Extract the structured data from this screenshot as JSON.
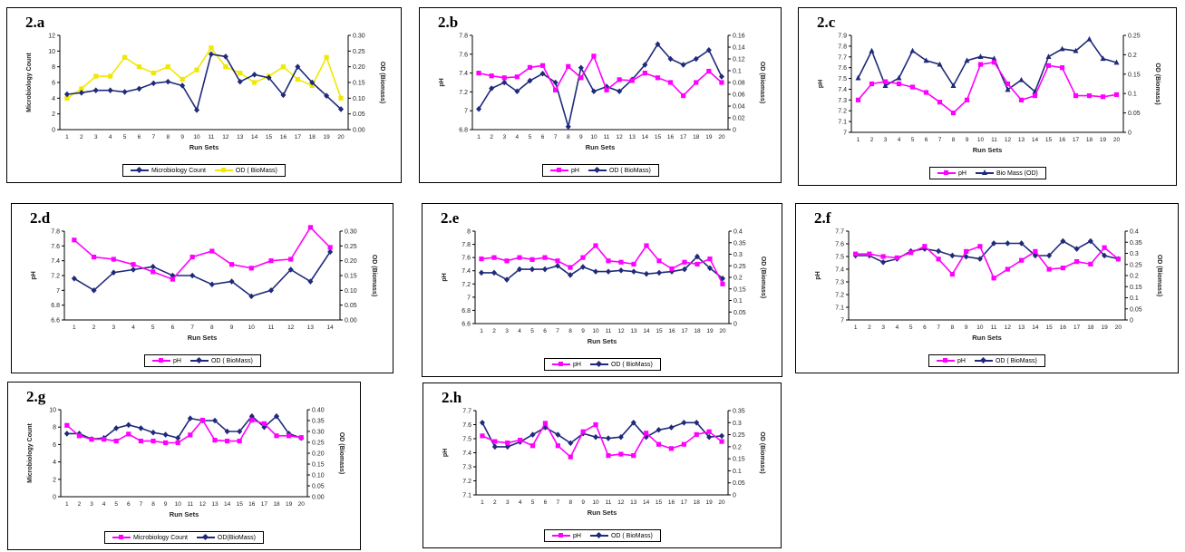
{
  "chart_data": [
    {
      "id": "2.a",
      "type": "line",
      "xlabel": "Run Sets",
      "ylabel": "Microbiology Count",
      "y2label": "OD (Biomass)",
      "x": [
        1,
        2,
        3,
        4,
        5,
        6,
        7,
        8,
        9,
        10,
        11,
        12,
        13,
        14,
        15,
        16,
        17,
        18,
        19,
        20
      ],
      "x_tick_labels": [
        "1",
        "2",
        "3",
        "4",
        "5",
        "6",
        "7",
        "8",
        "9",
        "10",
        "11",
        "12",
        "13",
        "14",
        "15",
        "16",
        "17",
        "18",
        "19",
        "20"
      ],
      "ylim": [
        0,
        12
      ],
      "yticks": [
        "0",
        "2",
        "4",
        "6",
        "8",
        "10",
        "12"
      ],
      "y2lim": [
        0,
        0.3
      ],
      "y2ticks": [
        "0.00",
        "0.05",
        "0.10",
        "0.15",
        "0.20",
        "0.25",
        "0.30"
      ],
      "series": [
        {
          "name": "Microbiology Count",
          "axis": "left",
          "color": "#1f2a7a",
          "marker": "diamond",
          "values": [
            4.5,
            4.7,
            5.0,
            5.0,
            4.8,
            5.2,
            5.9,
            6.1,
            5.6,
            2.5,
            9.6,
            9.3,
            6.1,
            7.0,
            6.6,
            4.4,
            8.0,
            6.0,
            4.3,
            2.6
          ]
        },
        {
          "name": "OD ( BioMass)",
          "axis": "right",
          "color": "#f0e800",
          "marker": "square",
          "values": [
            0.1,
            0.13,
            0.17,
            0.17,
            0.23,
            0.2,
            0.18,
            0.2,
            0.16,
            0.19,
            0.26,
            0.2,
            0.18,
            0.15,
            0.17,
            0.2,
            0.16,
            0.14,
            0.23,
            0.1
          ]
        }
      ]
    },
    {
      "id": "2.b",
      "type": "line",
      "xlabel": "Run Sets",
      "ylabel": "pH",
      "y2label": "OD (Biomass)",
      "x": [
        1,
        2,
        3,
        4,
        5,
        6,
        7,
        8,
        9,
        10,
        11,
        12,
        13,
        14,
        15,
        16,
        17,
        18,
        19,
        20
      ],
      "x_tick_labels": [
        "1",
        "2",
        "3",
        "4",
        "5",
        "6",
        "7",
        "8",
        "9",
        "10",
        "11",
        "12",
        "13",
        "14",
        "15",
        "16",
        "17",
        "18",
        "19",
        "20"
      ],
      "ylim": [
        6.8,
        7.8
      ],
      "yticks": [
        "6.8",
        "7",
        "7.2",
        "7.4",
        "7.6",
        "7.8"
      ],
      "y2lim": [
        0,
        0.16
      ],
      "y2ticks": [
        "0",
        "0.02",
        "0.04",
        "0.06",
        "0.08",
        "0.1",
        "0.12",
        "0.14",
        "0.16"
      ],
      "series": [
        {
          "name": "pH",
          "axis": "left",
          "color": "#ff00ff",
          "marker": "square",
          "values": [
            7.4,
            7.37,
            7.35,
            7.36,
            7.46,
            7.48,
            7.22,
            7.47,
            7.35,
            7.58,
            7.22,
            7.33,
            7.32,
            7.4,
            7.35,
            7.3,
            7.16,
            7.3,
            7.42,
            7.3
          ]
        },
        {
          "name": "OD ( BioMass)",
          "axis": "right",
          "color": "#1f2a7a",
          "marker": "diamond",
          "values": [
            0.035,
            0.07,
            0.08,
            0.065,
            0.083,
            0.095,
            0.08,
            0.005,
            0.105,
            0.065,
            0.073,
            0.065,
            0.085,
            0.11,
            0.145,
            0.12,
            0.11,
            0.12,
            0.135,
            0.09
          ]
        }
      ]
    },
    {
      "id": "2.c",
      "type": "line",
      "xlabel": "Run Sets",
      "ylabel": "pH",
      "y2label": "OD (Biomass)",
      "x": [
        1,
        2,
        3,
        4,
        5,
        6,
        7,
        8,
        9,
        10,
        11,
        12,
        13,
        14,
        15,
        16,
        17,
        18,
        19,
        20
      ],
      "x_tick_labels": [
        "1",
        "2",
        "3",
        "4",
        "5",
        "6",
        "7",
        "8",
        "9",
        "10",
        "11",
        "12",
        "13",
        "14",
        "15",
        "16",
        "17",
        "18",
        "19",
        "20"
      ],
      "ylim": [
        7,
        7.9
      ],
      "yticks": [
        "7",
        "7.1",
        "7.2",
        "7.3",
        "7.4",
        "7.5",
        "7.6",
        "7.7",
        "7.8",
        "7.9"
      ],
      "y2lim": [
        0,
        0.25
      ],
      "y2ticks": [
        "0",
        "0.05",
        "0.1",
        "0.15",
        "0.2",
        "0.25"
      ],
      "series": [
        {
          "name": "pH",
          "axis": "left",
          "color": "#ff00ff",
          "marker": "square",
          "values": [
            7.3,
            7.45,
            7.47,
            7.45,
            7.42,
            7.37,
            7.28,
            7.18,
            7.3,
            7.63,
            7.65,
            7.45,
            7.3,
            7.34,
            7.62,
            7.6,
            7.34,
            7.34,
            7.33,
            7.35
          ]
        },
        {
          "name": "Bio Mass (OD)",
          "axis": "right",
          "color": "#1f2a7a",
          "marker": "triangle",
          "values": [
            0.14,
            0.21,
            0.12,
            0.14,
            0.21,
            0.185,
            0.175,
            0.12,
            0.185,
            0.195,
            0.19,
            0.11,
            0.135,
            0.105,
            0.195,
            0.215,
            0.21,
            0.24,
            0.19,
            0.18
          ]
        }
      ]
    },
    {
      "id": "2.d",
      "type": "line",
      "xlabel": "Run Sets",
      "ylabel": "pH",
      "y2label": "OD (Biomass)",
      "x": [
        1,
        2,
        3,
        4,
        5,
        6,
        7,
        8,
        9,
        10,
        11,
        12,
        13,
        14
      ],
      "x_tick_labels": [
        "1",
        "2",
        "3",
        "4",
        "5",
        "6",
        "7",
        "8",
        "9",
        "10",
        "11",
        "12",
        "13",
        "14"
      ],
      "ylim": [
        6.6,
        7.8
      ],
      "yticks": [
        "6.6",
        "6.8",
        "7",
        "7.2",
        "7.4",
        "7.6",
        "7.8"
      ],
      "y2lim": [
        0,
        0.3
      ],
      "y2ticks": [
        "0.00",
        "0.05",
        "0.10",
        "0.15",
        "0.20",
        "0.25",
        "0.30"
      ],
      "series": [
        {
          "name": "pH",
          "axis": "left",
          "color": "#ff00ff",
          "marker": "square",
          "values": [
            7.68,
            7.45,
            7.42,
            7.35,
            7.25,
            7.15,
            7.45,
            7.53,
            7.35,
            7.3,
            7.4,
            7.42,
            7.85,
            7.58
          ]
        },
        {
          "name": "OD ( BioMass)",
          "axis": "right",
          "color": "#1f2a7a",
          "marker": "diamond",
          "values": [
            0.14,
            0.1,
            0.16,
            0.17,
            0.18,
            0.15,
            0.15,
            0.12,
            0.13,
            0.08,
            0.1,
            0.17,
            0.13,
            0.23
          ]
        }
      ]
    },
    {
      "id": "2.e",
      "type": "line",
      "xlabel": "Run Sets",
      "ylabel": "pH",
      "y2label": "OD (Biomass)",
      "x": [
        1,
        2,
        3,
        4,
        5,
        6,
        7,
        8,
        9,
        10,
        11,
        12,
        13,
        14,
        15,
        16,
        17,
        18,
        19,
        20
      ],
      "x_tick_labels": [
        "1",
        "2",
        "3",
        "4",
        "5",
        "6",
        "7",
        "8",
        "9",
        "10",
        "11",
        "12",
        "13",
        "14",
        "15",
        "16",
        "17",
        "18",
        "19",
        "20"
      ],
      "ylim": [
        6.6,
        8
      ],
      "yticks": [
        "6.6",
        "6.8",
        "7",
        "7.2",
        "7.4",
        "7.6",
        "7.8",
        "8"
      ],
      "y2lim": [
        0,
        0.4
      ],
      "y2ticks": [
        "0",
        "0.05",
        "0.1",
        "0.15",
        "0.2",
        "0.25",
        "0.3",
        "0.35",
        "0.4"
      ],
      "series": [
        {
          "name": "pH",
          "axis": "left",
          "color": "#ff00ff",
          "marker": "square",
          "values": [
            7.58,
            7.6,
            7.55,
            7.6,
            7.57,
            7.6,
            7.55,
            7.45,
            7.6,
            7.78,
            7.55,
            7.53,
            7.5,
            7.78,
            7.55,
            7.43,
            7.53,
            7.5,
            7.58,
            7.2
          ]
        },
        {
          "name": "OD ( BioMass)",
          "axis": "right",
          "color": "#1f2a7a",
          "marker": "diamond",
          "values": [
            0.22,
            0.22,
            0.19,
            0.235,
            0.235,
            0.235,
            0.25,
            0.21,
            0.245,
            0.225,
            0.225,
            0.23,
            0.225,
            0.215,
            0.22,
            0.225,
            0.235,
            0.29,
            0.24,
            0.195
          ]
        }
      ]
    },
    {
      "id": "2.f",
      "type": "line",
      "xlabel": "Run Sets",
      "ylabel": "pH",
      "y2label": "OD (Biomass)",
      "x": [
        1,
        2,
        3,
        4,
        5,
        6,
        7,
        8,
        9,
        10,
        11,
        12,
        13,
        14,
        15,
        16,
        17,
        18,
        19,
        20
      ],
      "x_tick_labels": [
        "1",
        "2",
        "3",
        "4",
        "5",
        "6",
        "7",
        "8",
        "9",
        "10",
        "11",
        "12",
        "13",
        "14",
        "15",
        "16",
        "17",
        "18",
        "19",
        "20"
      ],
      "ylim": [
        7,
        7.7
      ],
      "yticks": [
        "7",
        "7.1",
        "7.2",
        "7.3",
        "7.4",
        "7.5",
        "7.6",
        "7.7"
      ],
      "y2lim": [
        0,
        0.4
      ],
      "y2ticks": [
        "0",
        "0.05",
        "0.1",
        "0.15",
        "0.2",
        "0.25",
        "0.3",
        "0.35",
        "0.4"
      ],
      "series": [
        {
          "name": "pH",
          "axis": "left",
          "color": "#ff00ff",
          "marker": "square",
          "values": [
            7.52,
            7.52,
            7.5,
            7.49,
            7.53,
            7.58,
            7.48,
            7.36,
            7.54,
            7.58,
            7.33,
            7.4,
            7.47,
            7.54,
            7.4,
            7.41,
            7.46,
            7.44,
            7.57,
            7.48
          ]
        },
        {
          "name": "OD ( BioMass)",
          "axis": "right",
          "color": "#1f2a7a",
          "marker": "diamond",
          "values": [
            0.29,
            0.29,
            0.26,
            0.275,
            0.31,
            0.32,
            0.31,
            0.29,
            0.285,
            0.275,
            0.345,
            0.345,
            0.345,
            0.29,
            0.29,
            0.355,
            0.32,
            0.355,
            0.29,
            0.275
          ]
        }
      ]
    },
    {
      "id": "2.g",
      "type": "line",
      "xlabel": "Run Sets",
      "ylabel": "Microbiology Count",
      "y2label": "OD (Biomass)",
      "x": [
        1,
        2,
        3,
        4,
        5,
        6,
        7,
        8,
        9,
        10,
        11,
        12,
        13,
        14,
        15,
        16,
        17,
        18,
        19,
        20
      ],
      "x_tick_labels": [
        "1",
        "2",
        "3",
        "4",
        "5",
        "6",
        "7",
        "8",
        "9",
        "10",
        "11",
        "12",
        "13",
        "14",
        "15",
        "16",
        "17",
        "18",
        "19",
        "20"
      ],
      "ylim": [
        0,
        10
      ],
      "yticks": [
        "0",
        "2",
        "4",
        "6",
        "8",
        "10"
      ],
      "y2lim": [
        0,
        0.4
      ],
      "y2ticks": [
        "0.00",
        "0.05",
        "0.10",
        "0.15",
        "0.20",
        "0.25",
        "0.30",
        "0.35",
        "0.40"
      ],
      "series": [
        {
          "name": "Microbiology Count",
          "axis": "left",
          "color": "#ff00ff",
          "marker": "square",
          "values": [
            8.2,
            7.0,
            6.6,
            6.6,
            6.4,
            7.2,
            6.4,
            6.4,
            6.2,
            6.2,
            7.1,
            8.8,
            6.5,
            6.4,
            6.4,
            8.8,
            8.4,
            7.0,
            7.0,
            6.8
          ]
        },
        {
          "name": "OD(BioMass)",
          "axis": "right",
          "color": "#1f2a7a",
          "marker": "diamond",
          "values": [
            0.29,
            0.29,
            0.265,
            0.27,
            0.315,
            0.33,
            0.315,
            0.295,
            0.285,
            0.27,
            0.36,
            0.35,
            0.35,
            0.3,
            0.3,
            0.37,
            0.32,
            0.37,
            0.29,
            0.27
          ]
        }
      ]
    },
    {
      "id": "2.h",
      "type": "line",
      "xlabel": "Run Sets",
      "ylabel": "pH",
      "y2label": "OD (Biomass)",
      "x": [
        1,
        2,
        3,
        4,
        5,
        6,
        7,
        8,
        9,
        10,
        11,
        12,
        13,
        14,
        15,
        16,
        17,
        18,
        19,
        20
      ],
      "x_tick_labels": [
        "1",
        "2",
        "3",
        "4",
        "5",
        "6",
        "7",
        "8",
        "9",
        "10",
        "11",
        "12",
        "13",
        "14",
        "15",
        "16",
        "17",
        "18",
        "19",
        "20"
      ],
      "ylim": [
        7.1,
        7.7
      ],
      "yticks": [
        "7.1",
        "7.2",
        "7.3",
        "7.4",
        "7.5",
        "7.6",
        "7.7"
      ],
      "y2lim": [
        0,
        0.35
      ],
      "y2ticks": [
        "0",
        "0.05",
        "0.1",
        "0.15",
        "0.2",
        "0.25",
        "0.3",
        "0.35"
      ],
      "series": [
        {
          "name": "pH",
          "axis": "left",
          "color": "#ff00ff",
          "marker": "square",
          "values": [
            7.52,
            7.48,
            7.47,
            7.49,
            7.45,
            7.61,
            7.45,
            7.37,
            7.55,
            7.6,
            7.38,
            7.39,
            7.38,
            7.54,
            7.46,
            7.43,
            7.46,
            7.53,
            7.55,
            7.48
          ]
        },
        {
          "name": "OD ( BioMass)",
          "axis": "right",
          "color": "#1f2a7a",
          "marker": "diamond",
          "values": [
            0.3,
            0.2,
            0.2,
            0.22,
            0.25,
            0.28,
            0.25,
            0.215,
            0.255,
            0.24,
            0.235,
            0.24,
            0.3,
            0.24,
            0.27,
            0.28,
            0.3,
            0.3,
            0.24,
            0.245
          ]
        }
      ]
    }
  ]
}
